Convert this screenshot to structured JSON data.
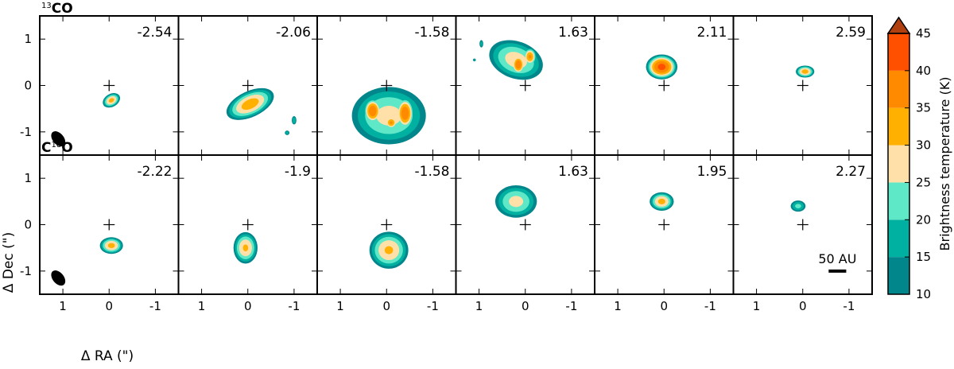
{
  "chart_data": {
    "type": "heatmap",
    "rows": [
      {
        "label_sup": "13",
        "label_main": "CO",
        "label_order": "sup-first",
        "panels": [
          {
            "velocity": "-2.54",
            "show_beam": true,
            "blobs": [
              {
                "x": -0.05,
                "y": -0.32,
                "rx": 0.2,
                "ry": 0.14,
                "rot": -30,
                "peak": 32
              }
            ]
          },
          {
            "velocity": "-2.06",
            "show_beam": false,
            "blobs": [
              {
                "x": -0.05,
                "y": -0.4,
                "rx": 0.55,
                "ry": 0.28,
                "rot": -25,
                "peak": 33
              },
              {
                "x": -1.0,
                "y": -0.75,
                "rx": 0.05,
                "ry": 0.09,
                "rot": 0,
                "peak": 20
              },
              {
                "x": -0.85,
                "y": -1.02,
                "rx": 0.05,
                "ry": 0.05,
                "rot": 0,
                "peak": 18
              }
            ]
          },
          {
            "velocity": "-1.58",
            "show_beam": false,
            "blobs": [
              {
                "x": -0.05,
                "y": -0.65,
                "rx": 0.8,
                "ry": 0.62,
                "rot": 0,
                "peak": 27
              },
              {
                "x": -0.4,
                "y": -0.6,
                "rx": 0.2,
                "ry": 0.35,
                "rot": 0,
                "peak": 40
              },
              {
                "x": 0.3,
                "y": -0.55,
                "rx": 0.2,
                "ry": 0.28,
                "rot": 0,
                "peak": 40
              },
              {
                "x": -0.1,
                "y": -0.8,
                "rx": 0.15,
                "ry": 0.15,
                "rot": 0,
                "peak": 36
              }
            ]
          },
          {
            "velocity": "1.63",
            "show_beam": false,
            "blobs": [
              {
                "x": 0.2,
                "y": 0.55,
                "rx": 0.6,
                "ry": 0.4,
                "rot": 20,
                "peak": 28
              },
              {
                "x": 0.15,
                "y": 0.45,
                "rx": 0.15,
                "ry": 0.22,
                "rot": 0,
                "peak": 40
              },
              {
                "x": -0.1,
                "y": 0.62,
                "rx": 0.15,
                "ry": 0.2,
                "rot": 0,
                "peak": 36
              },
              {
                "x": 0.95,
                "y": 0.9,
                "rx": 0.04,
                "ry": 0.08,
                "rot": 0,
                "peak": 18
              },
              {
                "x": 1.1,
                "y": 0.55,
                "rx": 0.03,
                "ry": 0.03,
                "rot": 0,
                "peak": 16
              }
            ]
          },
          {
            "velocity": "2.11",
            "show_beam": false,
            "blobs": [
              {
                "x": 0.05,
                "y": 0.4,
                "rx": 0.34,
                "ry": 0.27,
                "rot": 0,
                "peak": 42
              }
            ]
          },
          {
            "velocity": "2.59",
            "show_beam": false,
            "blobs": [
              {
                "x": -0.05,
                "y": 0.3,
                "rx": 0.2,
                "ry": 0.13,
                "rot": 0,
                "peak": 33
              }
            ]
          }
        ]
      },
      {
        "label_sup": "18",
        "label_main": "C",
        "label_tail": "O",
        "label_order": "main-sup-tail",
        "panels": [
          {
            "velocity": "-2.22",
            "show_beam": true,
            "blobs": [
              {
                "x": -0.05,
                "y": -0.45,
                "rx": 0.25,
                "ry": 0.18,
                "rot": 0,
                "peak": 32
              }
            ]
          },
          {
            "velocity": "-1.9",
            "show_beam": false,
            "blobs": [
              {
                "x": 0.05,
                "y": -0.5,
                "rx": 0.26,
                "ry": 0.34,
                "rot": 0,
                "peak": 31
              }
            ]
          },
          {
            "velocity": "-1.58",
            "show_beam": false,
            "blobs": [
              {
                "x": -0.05,
                "y": -0.55,
                "rx": 0.42,
                "ry": 0.4,
                "rot": 0,
                "peak": 31
              }
            ]
          },
          {
            "velocity": "1.63",
            "show_beam": false,
            "blobs": [
              {
                "x": 0.2,
                "y": 0.5,
                "rx": 0.45,
                "ry": 0.35,
                "rot": 0,
                "peak": 27
              }
            ]
          },
          {
            "velocity": "1.95",
            "show_beam": false,
            "blobs": [
              {
                "x": 0.05,
                "y": 0.5,
                "rx": 0.26,
                "ry": 0.2,
                "rot": 0,
                "peak": 32
              }
            ]
          },
          {
            "velocity": "2.27",
            "show_beam": false,
            "blobs": [
              {
                "x": 0.1,
                "y": 0.4,
                "rx": 0.16,
                "ry": 0.12,
                "rot": 0,
                "peak": 22
              }
            ]
          }
        ]
      }
    ],
    "ra_ticks": [
      "1",
      "0",
      "-1"
    ],
    "dec_ticks": [
      "1",
      "0",
      "-1"
    ],
    "ra_tick_values": [
      1,
      0,
      -1
    ],
    "dec_tick_values": [
      1,
      0,
      -1
    ],
    "xlim": [
      1.5,
      -1.5
    ],
    "ylim": [
      -1.5,
      1.5
    ],
    "xlabel": "Δ RA (\")",
    "ylabel": "Δ Dec (\")",
    "scale_bar_label": "50 AU",
    "scale_bar_length_arcsec": 0.38,
    "colorbar": {
      "label": "Brightness temperature (K)",
      "ticks": [
        "10",
        "15",
        "20",
        "25",
        "30",
        "35",
        "40",
        "45"
      ],
      "levels": [
        10,
        15,
        20,
        25,
        30,
        35,
        40,
        45
      ],
      "extend": "max",
      "colors": [
        "#00868b",
        "#00b0a0",
        "#5fe8c8",
        "#ffe0a8",
        "#ffb000",
        "#ff8a00",
        "#ff5000",
        "#b04010"
      ]
    }
  }
}
